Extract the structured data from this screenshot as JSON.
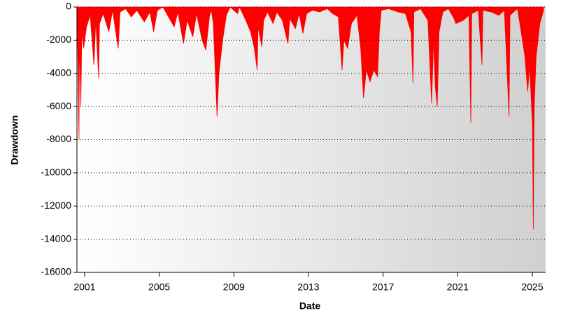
{
  "chart_data": {
    "type": "area",
    "xlabel": "Date",
    "ylabel": "Drawdown",
    "x": [
      2000.6,
      2000.7,
      2000.72,
      2000.8,
      2000.85,
      2000.95,
      2001.1,
      2001.3,
      2001.4,
      2001.5,
      2001.6,
      2001.75,
      2001.8,
      2002.0,
      2002.3,
      2002.5,
      2002.8,
      2002.9,
      2003.2,
      2003.5,
      2003.8,
      2004.2,
      2004.5,
      2004.7,
      2004.9,
      2005.2,
      2005.5,
      2005.8,
      2006.0,
      2006.3,
      2006.5,
      2006.8,
      2007.0,
      2007.3,
      2007.5,
      2007.7,
      2007.8,
      2007.9,
      2008.1,
      2008.2,
      2008.4,
      2008.6,
      2008.8,
      2009.0,
      2009.2,
      2009.3,
      2009.6,
      2009.9,
      2010.1,
      2010.25,
      2010.3,
      2010.5,
      2010.6,
      2010.8,
      2011.1,
      2011.3,
      2011.6,
      2011.9,
      2012.0,
      2012.3,
      2012.5,
      2012.7,
      2012.9,
      2013.2,
      2013.6,
      2014.0,
      2014.3,
      2014.6,
      2014.8,
      2014.9,
      2015.1,
      2015.3,
      2015.6,
      2015.8,
      2015.95,
      2016.1,
      2016.3,
      2016.5,
      2016.7,
      2016.8,
      2016.9,
      2017.3,
      2017.8,
      2018.2,
      2018.5,
      2018.6,
      2018.65,
      2019.0,
      2019.4,
      2019.6,
      2019.7,
      2019.8,
      2019.9,
      2020.0,
      2020.2,
      2020.5,
      2020.8,
      2020.9,
      2021.3,
      2021.6,
      2021.7,
      2021.75,
      2022.1,
      2022.3,
      2022.35,
      2022.8,
      2023.2,
      2023.5,
      2023.75,
      2023.8,
      2024.2,
      2024.4,
      2024.6,
      2024.75,
      2024.85,
      2025.0,
      2025.05,
      2025.1,
      2025.2,
      2025.4,
      2025.6
    ],
    "values": [
      0,
      -8000,
      -2000,
      -6000,
      -1500,
      -2500,
      -1200,
      -500,
      -2000,
      -3500,
      -800,
      -4300,
      -1000,
      -400,
      -1500,
      -200,
      -2500,
      -300,
      -100,
      -600,
      -200,
      -900,
      -300,
      -1500,
      -200,
      0,
      -600,
      -1200,
      -300,
      -2200,
      -800,
      -1800,
      -400,
      -2000,
      -2600,
      -500,
      -200,
      -1000,
      -6600,
      -4000,
      -2000,
      -500,
      0,
      -200,
      -400,
      0,
      -700,
      -1500,
      -2500,
      -3800,
      -1200,
      -2400,
      -800,
      -300,
      -1000,
      -300,
      -800,
      -2200,
      -700,
      -1300,
      -400,
      -1600,
      -400,
      -200,
      -300,
      -100,
      -400,
      -600,
      -3800,
      -2000,
      -2500,
      -1000,
      -500,
      -2500,
      -5500,
      -3800,
      -4500,
      -3800,
      -4200,
      -1500,
      -200,
      -100,
      -300,
      -400,
      -1500,
      -4600,
      -300,
      -100,
      -800,
      -5800,
      -2000,
      -4800,
      -6000,
      -1500,
      -300,
      -100,
      -700,
      -1000,
      -800,
      -500,
      -7000,
      -400,
      -200,
      -3500,
      -200,
      -300,
      -500,
      -200,
      -6600,
      -500,
      -100,
      -1500,
      -3000,
      -5100,
      -3500,
      -7000,
      -13400,
      -6000,
      -3000,
      -1000,
      -200
    ],
    "color": "#ff0000",
    "xlim": [
      2000.59,
      2025.71
    ],
    "xticks": [
      2001,
      2005,
      2009,
      2013,
      2017,
      2021,
      2025
    ],
    "ylim": [
      -16000,
      0
    ],
    "yticks": [
      -16000,
      -14000,
      -12000,
      -10000,
      -8000,
      -6000,
      -4000,
      -2000,
      0
    ],
    "grid": true
  }
}
